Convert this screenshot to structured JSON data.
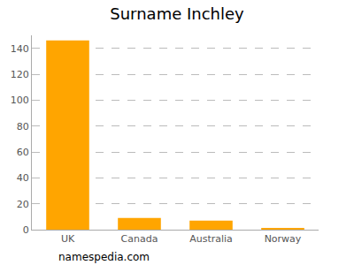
{
  "chart_data": {
    "type": "bar",
    "title": "Surname Inchley",
    "categories": [
      "UK",
      "Canada",
      "Australia",
      "Norway"
    ],
    "values": [
      146,
      9,
      7,
      1
    ],
    "color": "#ffa500",
    "ylim": [
      0,
      150
    ],
    "yticks": [
      0,
      20,
      40,
      60,
      80,
      100,
      120,
      140
    ],
    "grid": true,
    "annotations": [
      "namespedia.com"
    ]
  }
}
